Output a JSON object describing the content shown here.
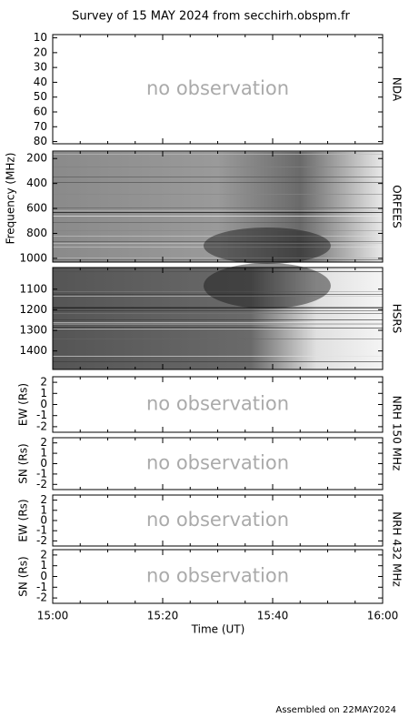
{
  "title": "Survey of 15 MAY 2024 from secchirh.obspm.fr",
  "footer": "Assembled on 22MAY2024",
  "xlabel": "Time (UT)",
  "ylabel": "Frequency (MHz)",
  "xlim": [
    "15:00",
    "16:00"
  ],
  "xticks": [
    "15:00",
    "15:20",
    "15:40",
    "16:00"
  ],
  "chart_data": [
    {
      "type": "empty",
      "side_label": "NDA",
      "annotation": "no observation",
      "ylim": [
        7.8,
        81.5
      ],
      "y_inverted": true,
      "yticks": [
        10,
        20,
        30,
        40,
        50,
        60,
        70,
        80
      ]
    },
    {
      "type": "spectrogram",
      "side_label": "ORFEES",
      "ylim": [
        140,
        1030
      ],
      "y_inverted": true,
      "yticks": [
        200,
        400,
        600,
        800,
        1000
      ]
    },
    {
      "type": "spectrogram",
      "side_label": "HSRS",
      "ylim": [
        995,
        1490
      ],
      "y_inverted": true,
      "yticks": [
        1100,
        1200,
        1300,
        1400
      ]
    },
    {
      "type": "empty",
      "ylabel": "EW (Rs)",
      "side_label": "NRH 150 MHz",
      "annotation": "no observation",
      "ylim": [
        -2.5,
        2.5
      ],
      "yticks": [
        -2,
        -1,
        0,
        1,
        2
      ]
    },
    {
      "type": "empty",
      "ylabel": "SN (Rs)",
      "annotation": "no observation",
      "ylim": [
        -2.5,
        2.5
      ],
      "yticks": [
        -2,
        -1,
        0,
        1,
        2
      ]
    },
    {
      "type": "empty",
      "ylabel": "EW (Rs)",
      "side_label": "NRH 432 MHz",
      "annotation": "no observation",
      "ylim": [
        -2.5,
        2.5
      ],
      "yticks": [
        -2,
        -1,
        0,
        1,
        2
      ]
    },
    {
      "type": "empty",
      "ylabel": "SN (Rs)",
      "annotation": "no observation",
      "ylim": [
        -2.5,
        2.5
      ],
      "yticks": [
        -2,
        -1,
        0,
        1,
        2
      ]
    }
  ]
}
